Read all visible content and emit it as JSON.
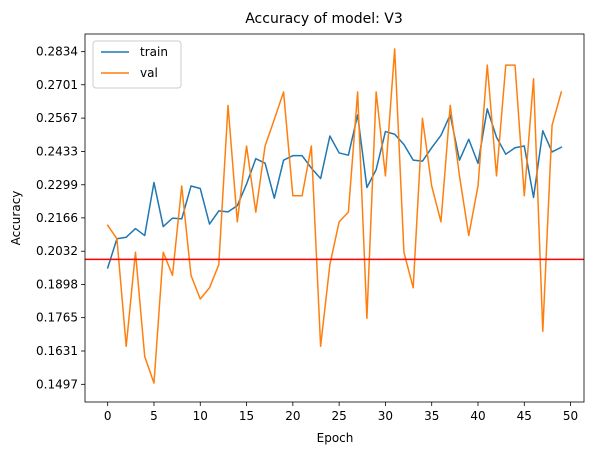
{
  "chart_data": {
    "type": "line",
    "title": "Accuracy of model: V3",
    "xlabel": "Epoch",
    "ylabel": "Accuracy",
    "xlim": [
      -2.45,
      51.45
    ],
    "ylim": [
      0.1426,
      0.2905
    ],
    "x_ticks": [
      0,
      5,
      10,
      15,
      20,
      25,
      30,
      35,
      40,
      45,
      50
    ],
    "x_tick_labels": [
      "0",
      "5",
      "10",
      "15",
      "20",
      "25",
      "30",
      "35",
      "40",
      "45",
      "50"
    ],
    "y_ticks": [
      0.1497,
      0.1631,
      0.1765,
      0.1898,
      0.2032,
      0.2166,
      0.2299,
      0.2433,
      0.2567,
      0.2701,
      0.2834
    ],
    "y_tick_labels": [
      "0.1497",
      "0.1631",
      "0.1765",
      "0.1898",
      "0.2032",
      "0.2166",
      "0.2299",
      "0.2433",
      "0.2567",
      "0.2701",
      "0.2834"
    ],
    "grid": false,
    "legend_position": "top-left",
    "x": [
      0,
      1,
      2,
      3,
      4,
      5,
      6,
      7,
      8,
      9,
      10,
      11,
      12,
      13,
      14,
      15,
      16,
      17,
      18,
      19,
      20,
      21,
      22,
      23,
      24,
      25,
      26,
      27,
      28,
      29,
      30,
      31,
      32,
      33,
      34,
      35,
      36,
      37,
      38,
      39,
      40,
      41,
      42,
      43,
      44,
      45,
      46,
      47,
      48,
      49
    ],
    "series": [
      {
        "name": "train",
        "color": "#1f77b4",
        "values": [
          0.1965,
          0.2082,
          0.2088,
          0.2123,
          0.2095,
          0.2308,
          0.2131,
          0.2165,
          0.2162,
          0.2294,
          0.2284,
          0.2141,
          0.2194,
          0.219,
          0.2215,
          0.2302,
          0.2404,
          0.2386,
          0.2245,
          0.2398,
          0.2416,
          0.2416,
          0.2366,
          0.2324,
          0.2495,
          0.2427,
          0.2418,
          0.258,
          0.2288,
          0.236,
          0.2513,
          0.2502,
          0.2461,
          0.2398,
          0.2394,
          0.2448,
          0.2498,
          0.258,
          0.2398,
          0.2482,
          0.2385,
          0.2604,
          0.249,
          0.2422,
          0.2448,
          0.2455,
          0.2248,
          0.2516,
          0.2431,
          0.245
        ]
      },
      {
        "name": "val",
        "color": "#ff7f0e",
        "values": [
          0.2136,
          0.2082,
          0.165,
          0.2028,
          0.1609,
          0.1502,
          0.2028,
          0.1935,
          0.2294,
          0.1935,
          0.184,
          0.1885,
          0.1978,
          0.2618,
          0.215,
          0.2455,
          0.2189,
          0.2455,
          0.2562,
          0.2672,
          0.2255,
          0.2255,
          0.2455,
          0.165,
          0.1978,
          0.215,
          0.2189,
          0.2672,
          0.1762,
          0.2672,
          0.2335,
          0.2845,
          0.2028,
          0.1885,
          0.2566,
          0.2294,
          0.215,
          0.2618,
          0.2335,
          0.2095,
          0.2294,
          0.278,
          0.2335,
          0.278,
          0.278,
          0.2255,
          0.2725,
          0.171,
          0.2538,
          0.2672
        ]
      }
    ],
    "reference_line": {
      "orientation": "horizontal",
      "y": 0.1999,
      "color": "#ff0000"
    }
  }
}
